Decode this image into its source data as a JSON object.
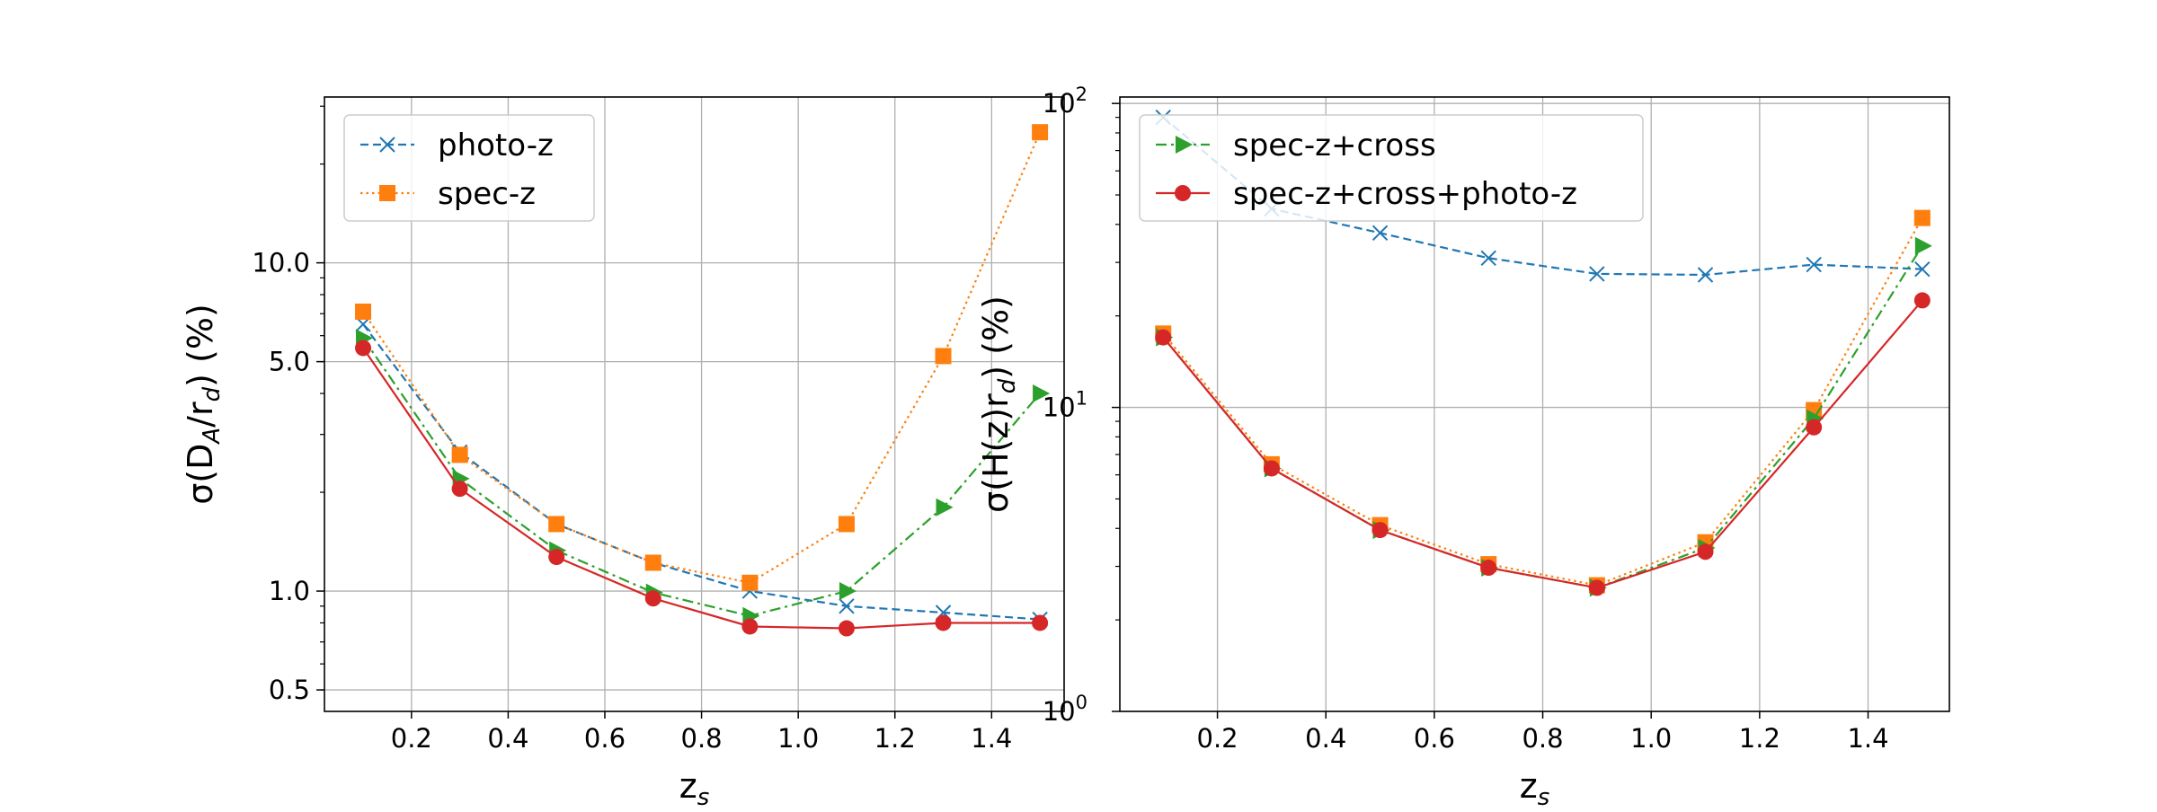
{
  "colors": {
    "photo_z": "#1f77b4",
    "spec_z": "#ff7f0e",
    "spec_cross": "#2ca02c",
    "spec_cross_photo": "#d62728",
    "grid": "#b0b0b0"
  },
  "chart_data": [
    {
      "type": "line",
      "ylog": true,
      "xlabel": "z_s",
      "ylabel": "σ(D_A/r_d) (%)",
      "x": [
        0.1,
        0.3,
        0.5,
        0.7,
        0.9,
        1.1,
        1.3,
        1.5
      ],
      "xlim": [
        0.02,
        1.55
      ],
      "ylim": [
        0.43,
        32
      ],
      "xticks": [
        0.2,
        0.4,
        0.6,
        0.8,
        1.0,
        1.2,
        1.4
      ],
      "xtick_labels": [
        "0.2",
        "0.4",
        "0.6",
        "0.8",
        "1.0",
        "1.2",
        "1.4"
      ],
      "yticks": [
        0.5,
        1.0,
        5.0,
        10.0
      ],
      "ytick_labels": [
        "0.5",
        "1.0",
        "5.0",
        "10.0"
      ],
      "legend_position": "top-left",
      "legend": [
        "photo-z",
        "spec-z"
      ],
      "series": [
        {
          "name": "photo-z",
          "values": [
            6.5,
            2.65,
            1.6,
            1.22,
            1.0,
            0.9,
            0.86,
            0.82
          ]
        },
        {
          "name": "spec-z",
          "values": [
            7.1,
            2.6,
            1.6,
            1.22,
            1.06,
            1.6,
            5.2,
            25.0
          ]
        },
        {
          "name": "spec-z+cross",
          "values": [
            5.9,
            2.2,
            1.33,
            0.99,
            0.84,
            1.0,
            1.8,
            4.0
          ]
        },
        {
          "name": "spec-z+cross+photo-z",
          "values": [
            5.5,
            2.05,
            1.27,
            0.95,
            0.78,
            0.77,
            0.8,
            0.8
          ]
        }
      ]
    },
    {
      "type": "line",
      "ylog": true,
      "xlabel": "z_s",
      "ylabel": "σ(H(z)r_d) (%)",
      "x": [
        0.1,
        0.3,
        0.5,
        0.7,
        0.9,
        1.1,
        1.3,
        1.5
      ],
      "xlim": [
        0.02,
        1.55
      ],
      "ylim": [
        1,
        105
      ],
      "yticks": [
        1,
        10,
        100
      ],
      "ytick_labels": [
        "10",
        "10",
        "10"
      ],
      "ytick_exponents": [
        "0",
        "1",
        "2"
      ],
      "xticks": [
        0.2,
        0.4,
        0.6,
        0.8,
        1.0,
        1.2,
        1.4
      ],
      "xtick_labels": [
        "0.2",
        "0.4",
        "0.6",
        "0.8",
        "1.0",
        "1.2",
        "1.4"
      ],
      "legend_position": "top-left",
      "legend": [
        "spec-z+cross",
        "spec-z+cross+photo-z"
      ],
      "series": [
        {
          "name": "photo-z",
          "values": [
            90,
            45,
            37.5,
            31,
            27.5,
            27.3,
            29.5,
            28.5
          ]
        },
        {
          "name": "spec-z",
          "values": [
            17.5,
            6.5,
            4.1,
            3.05,
            2.6,
            3.6,
            9.8,
            42
          ]
        },
        {
          "name": "spec-z+cross",
          "values": [
            17.0,
            6.3,
            3.95,
            2.97,
            2.55,
            3.45,
            9.2,
            34
          ]
        },
        {
          "name": "spec-z+cross+photo-z",
          "values": [
            17.0,
            6.3,
            3.95,
            2.97,
            2.55,
            3.35,
            8.6,
            22.5
          ]
        }
      ]
    }
  ]
}
